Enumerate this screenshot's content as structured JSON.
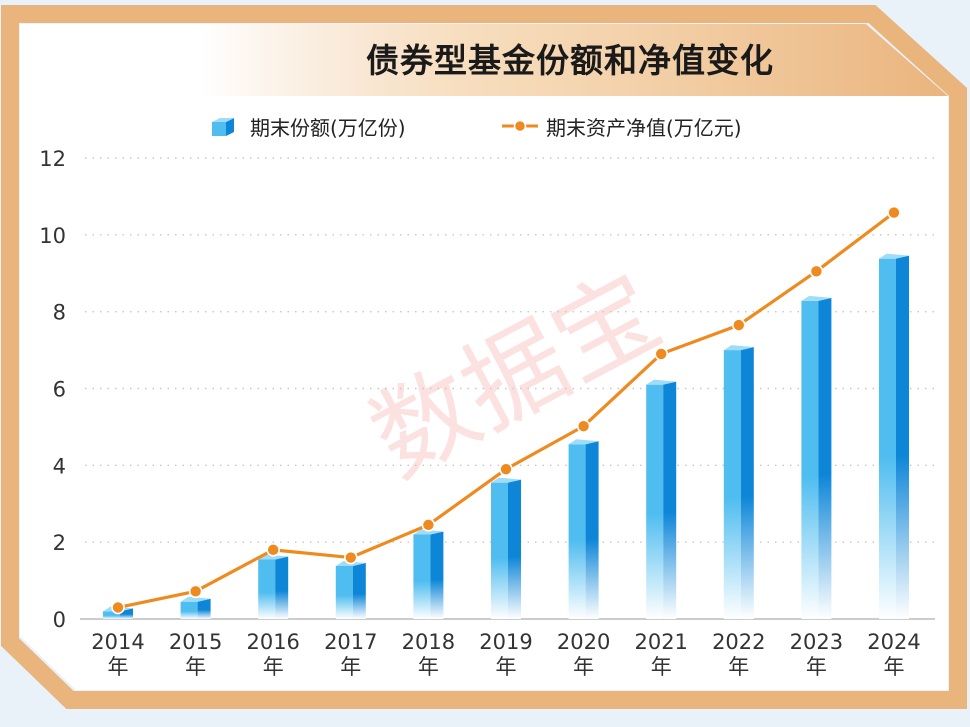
{
  "title": "债券型基金份额和净值变化",
  "watermark": "数据宝",
  "colors": {
    "frame": "#eab47d",
    "frame_light": "#f5d2a8",
    "bar_dark": "#0d86d8",
    "bar_light": "#4fbdf0",
    "bar_top": "#9fdcf8",
    "line": "#ee8a1e",
    "marker_edge": "#ffffff",
    "grid": "#c8c8c8",
    "axis": "#333333"
  },
  "legend": {
    "bar_label": "期末份额(万亿份)",
    "line_label": "期末资产净值(万亿元)"
  },
  "chart_data": {
    "type": "bar+line",
    "title": "债券型基金份额和净值变化",
    "categories": [
      "2014\n年",
      "2015\n年",
      "2016\n年",
      "2017\n年",
      "2018\n年",
      "2019\n年",
      "2020\n年",
      "2021\n年",
      "2022\n年",
      "2023\n年",
      "2024\n年"
    ],
    "category_years": [
      "2014",
      "2015",
      "2016",
      "2017",
      "2018",
      "2019",
      "2020",
      "2021",
      "2022",
      "2023",
      "2024"
    ],
    "category_suffix": "年",
    "series": [
      {
        "name": "期末份额(万亿份)",
        "type": "bar",
        "values": [
          0.2,
          0.45,
          1.55,
          1.38,
          2.2,
          3.55,
          4.55,
          6.1,
          7.0,
          8.28,
          9.38
        ]
      },
      {
        "name": "期末资产净值(万亿元)",
        "type": "line",
        "values": [
          0.3,
          0.72,
          1.8,
          1.6,
          2.45,
          3.9,
          5.02,
          6.9,
          7.65,
          9.05,
          10.58
        ]
      }
    ],
    "ylim": [
      0,
      12
    ],
    "yticks": [
      0,
      2,
      4,
      6,
      8,
      10,
      12
    ],
    "ytick_labels": [
      "0",
      "2",
      "4",
      "6",
      "8",
      "10",
      "12"
    ],
    "xlabel": "",
    "ylabel": "",
    "grid": true,
    "legend_position": "top"
  }
}
